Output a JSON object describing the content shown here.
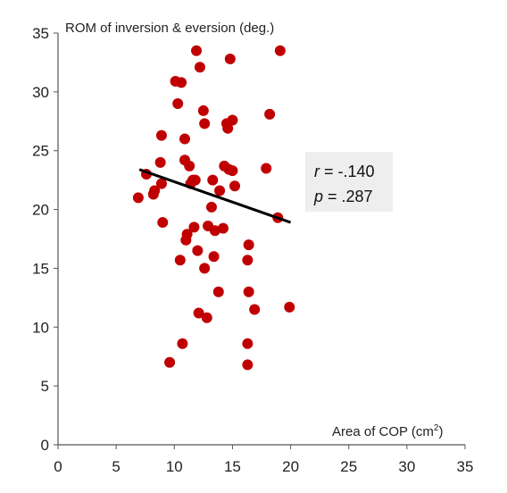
{
  "chart_data": {
    "type": "scatter",
    "xlabel_text": "Area of COP (cm",
    "xlabel_sup": "2",
    "xlabel_close": ")",
    "ylabel": "ROM of inversion & eversion (deg.)",
    "xlim": [
      0,
      35
    ],
    "ylim": [
      0,
      35
    ],
    "xticks": [
      "0",
      "5",
      "10",
      "15",
      "20",
      "25",
      "30",
      "35"
    ],
    "yticks": [
      "0",
      "5",
      "10",
      "15",
      "20",
      "25",
      "30",
      "35"
    ],
    "grid": false,
    "series": [
      {
        "points": [
          [
            6.9,
            21.0
          ],
          [
            7.6,
            23.0
          ],
          [
            8.2,
            21.3
          ],
          [
            8.3,
            21.6
          ],
          [
            8.8,
            24.0
          ],
          [
            8.9,
            22.2
          ],
          [
            8.9,
            26.3
          ],
          [
            9.0,
            18.9
          ],
          [
            9.6,
            7.0
          ],
          [
            10.1,
            30.9
          ],
          [
            10.3,
            29.0
          ],
          [
            10.5,
            15.7
          ],
          [
            10.6,
            30.8
          ],
          [
            10.7,
            8.6
          ],
          [
            10.9,
            24.2
          ],
          [
            10.9,
            26.0
          ],
          [
            11.0,
            17.4
          ],
          [
            11.1,
            17.9
          ],
          [
            11.3,
            23.7
          ],
          [
            11.4,
            22.2
          ],
          [
            11.6,
            22.5
          ],
          [
            11.7,
            18.5
          ],
          [
            11.8,
            22.5
          ],
          [
            11.9,
            33.5
          ],
          [
            12.0,
            16.5
          ],
          [
            12.1,
            11.2
          ],
          [
            12.2,
            32.1
          ],
          [
            12.5,
            28.4
          ],
          [
            12.6,
            27.3
          ],
          [
            12.6,
            15.0
          ],
          [
            12.8,
            10.8
          ],
          [
            12.9,
            18.6
          ],
          [
            13.2,
            20.2
          ],
          [
            13.3,
            22.5
          ],
          [
            13.4,
            16.0
          ],
          [
            13.5,
            18.2
          ],
          [
            13.8,
            13.0
          ],
          [
            13.9,
            21.6
          ],
          [
            14.2,
            18.4
          ],
          [
            14.3,
            23.7
          ],
          [
            14.5,
            27.3
          ],
          [
            14.6,
            26.9
          ],
          [
            14.7,
            23.4
          ],
          [
            14.8,
            32.8
          ],
          [
            15.0,
            27.6
          ],
          [
            15.0,
            23.3
          ],
          [
            15.2,
            22.0
          ],
          [
            16.3,
            6.8
          ],
          [
            16.3,
            8.6
          ],
          [
            16.3,
            15.7
          ],
          [
            16.4,
            13.0
          ],
          [
            16.4,
            17.0
          ],
          [
            16.9,
            11.5
          ],
          [
            17.9,
            23.5
          ],
          [
            18.2,
            28.1
          ],
          [
            18.9,
            19.3
          ],
          [
            19.1,
            33.5
          ],
          [
            19.9,
            11.7
          ]
        ],
        "color": "#c00000"
      }
    ],
    "trendline": {
      "x": [
        7.0,
        20.0
      ],
      "y": [
        23.4,
        18.9
      ],
      "color": "#000000"
    },
    "annotation": {
      "r_label": "r",
      "r_value": " = -.140",
      "p_label": "p",
      "p_value": " = .287"
    }
  }
}
